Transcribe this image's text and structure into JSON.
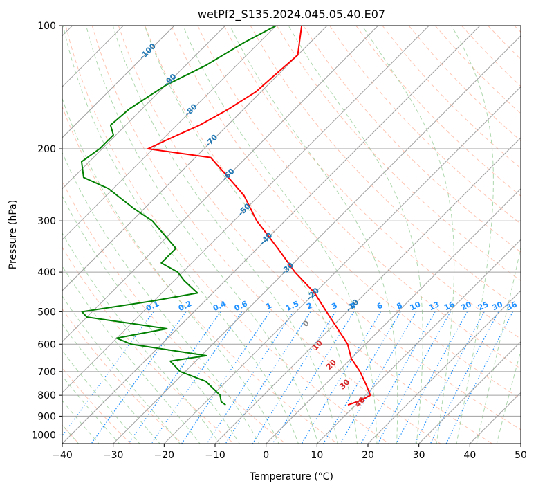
{
  "chart_data": {
    "type": "line",
    "subtype": "skew-t log-p diagram",
    "title": "wetPf2_S135.2024.045.05.40.E07",
    "xlabel": "Temperature (°C)",
    "ylabel": "Pressure (hPa)",
    "xlim": [
      -40,
      50
    ],
    "ylim": [
      1050,
      100
    ],
    "y_scale": "log",
    "x_ticks": [
      -40,
      -30,
      -20,
      -10,
      0,
      10,
      20,
      30,
      40,
      50
    ],
    "y_ticks": [
      100,
      200,
      300,
      400,
      500,
      600,
      700,
      800,
      900,
      1000
    ],
    "grid": true,
    "colors": {
      "temperature": "#ff0000",
      "dewpoint": "#008000",
      "skewed_isotherm": "#a0a0a0",
      "dry_adiabat": "#ff9f7f",
      "moist_adiabat": "#8cc88c",
      "mixing_ratio": "#1e90ff",
      "isotherm_label": "#1f77b4",
      "wet_bulb_label": "#d62728"
    },
    "isotherm_labels": [
      "-100",
      "-90",
      "-80",
      "-70",
      "-60",
      "-50",
      "-40",
      "-30",
      "-20",
      "-10"
    ],
    "mixing_ratio_labels": [
      "0.1",
      "0.2",
      "0.4",
      "0.6",
      "1",
      "1.5",
      "2",
      "3",
      "4",
      "6",
      "8",
      "10",
      "13",
      "16",
      "20",
      "25",
      "30",
      "36"
    ],
    "wet_bulb_labels": [
      "0",
      "10",
      "20",
      "30",
      "40"
    ],
    "series": [
      {
        "kind": "temperature",
        "points": [
          {
            "p": 100,
            "t": -75.0
          },
          {
            "p": 118,
            "t": -70.0
          },
          {
            "p": 130,
            "t": -70.5
          },
          {
            "p": 145,
            "t": -71.0
          },
          {
            "p": 160,
            "t": -73.0
          },
          {
            "p": 175,
            "t": -75.5
          },
          {
            "p": 190,
            "t": -79.0
          },
          {
            "p": 200,
            "t": -81.0
          },
          {
            "p": 210,
            "t": -67.0
          },
          {
            "p": 230,
            "t": -61.0
          },
          {
            "p": 260,
            "t": -53.0
          },
          {
            "p": 300,
            "t": -45.5
          },
          {
            "p": 350,
            "t": -36.0
          },
          {
            "p": 400,
            "t": -28.0
          },
          {
            "p": 450,
            "t": -20.0
          },
          {
            "p": 500,
            "t": -14.0
          },
          {
            "p": 550,
            "t": -8.5
          },
          {
            "p": 600,
            "t": -3.5
          },
          {
            "p": 650,
            "t": 0.0
          },
          {
            "p": 700,
            "t": 4.3
          },
          {
            "p": 760,
            "t": 8.5
          },
          {
            "p": 800,
            "t": 11.0
          },
          {
            "p": 825,
            "t": 10.0
          },
          {
            "p": 845,
            "t": 8.5
          }
        ]
      },
      {
        "kind": "dewpoint",
        "points": [
          {
            "p": 100,
            "t": -80.0
          },
          {
            "p": 110,
            "t": -83.0
          },
          {
            "p": 125,
            "t": -86.0
          },
          {
            "p": 140,
            "t": -90.0
          },
          {
            "p": 160,
            "t": -92.5
          },
          {
            "p": 175,
            "t": -93.0
          },
          {
            "p": 185,
            "t": -90.5
          },
          {
            "p": 200,
            "t": -90.5
          },
          {
            "p": 215,
            "t": -91.5
          },
          {
            "p": 235,
            "t": -88.0
          },
          {
            "p": 250,
            "t": -81.0
          },
          {
            "p": 280,
            "t": -72.0
          },
          {
            "p": 300,
            "t": -66.0
          },
          {
            "p": 350,
            "t": -56.0
          },
          {
            "p": 380,
            "t": -56.0
          },
          {
            "p": 400,
            "t": -51.0
          },
          {
            "p": 420,
            "t": -48.0
          },
          {
            "p": 450,
            "t": -43.0
          },
          {
            "p": 470,
            "t": -50.0
          },
          {
            "p": 500,
            "t": -62.0
          },
          {
            "p": 515,
            "t": -60.0
          },
          {
            "p": 550,
            "t": -42.0
          },
          {
            "p": 580,
            "t": -50.0
          },
          {
            "p": 600,
            "t": -46.0
          },
          {
            "p": 640,
            "t": -29.0
          },
          {
            "p": 660,
            "t": -35.0
          },
          {
            "p": 700,
            "t": -31.0
          },
          {
            "p": 740,
            "t": -24.0
          },
          {
            "p": 800,
            "t": -18.5
          },
          {
            "p": 830,
            "t": -17.0
          },
          {
            "p": 845,
            "t": -15.5
          }
        ]
      }
    ]
  }
}
